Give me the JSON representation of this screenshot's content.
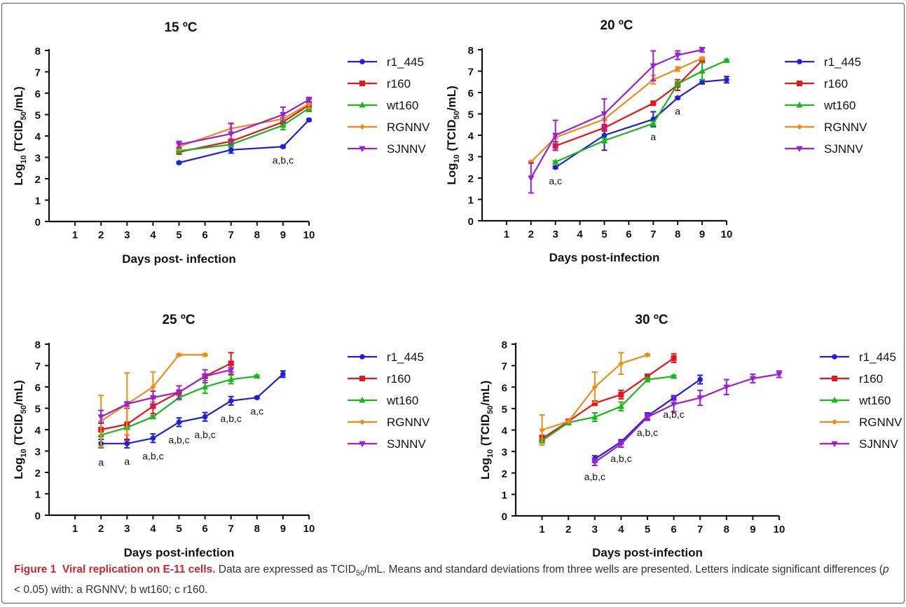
{
  "colors": {
    "r1_445": "#1f1fdc",
    "r160": "#e8131b",
    "wt160": "#18b818",
    "RGNNV": "#f08c14",
    "SJNNV": "#9b1fd6"
  },
  "legend": [
    "r1_445",
    "r160",
    "wt160",
    "RGNNV",
    "SJNNV"
  ],
  "caption": {
    "fig": "Figure 1",
    "title": "Viral replication on E-11 cells.",
    "text1": " Data are expressed as TCID",
    "sub": "50",
    "text2": "/mL. Means and standard deviations from three wells are presented. Letters indicate significant differences (",
    "p": "p",
    "text3": " < 0.05) with: a RGNNV; b wt160; c r160."
  },
  "chart_data": [
    {
      "type": "line",
      "title": "15 ºC",
      "xlabel": "Days post- infection",
      "ylabel": "Log10 (TCID50/mL)",
      "xlim": [
        0,
        10
      ],
      "ylim": [
        0,
        8
      ],
      "xticks": [
        1,
        2,
        3,
        4,
        5,
        6,
        7,
        8,
        9,
        10
      ],
      "yticks": [
        0,
        1,
        2,
        3,
        4,
        5,
        6,
        7,
        8
      ],
      "legend_position": "right",
      "series": [
        {
          "name": "r1_445",
          "x": [
            5,
            7,
            9,
            10
          ],
          "y": [
            2.75,
            3.35,
            3.5,
            4.75
          ],
          "err": [
            0.05,
            0.15,
            0.05,
            0.05
          ]
        },
        {
          "name": "r160",
          "x": [
            5,
            7,
            9,
            10
          ],
          "y": [
            3.25,
            3.75,
            4.65,
            5.45
          ],
          "err": [
            0.1,
            0.1,
            0.2,
            0.3
          ]
        },
        {
          "name": "wt160",
          "x": [
            5,
            7,
            9,
            10
          ],
          "y": [
            3.3,
            3.6,
            4.5,
            5.3
          ],
          "err": [
            0.1,
            0.1,
            0.2,
            0.15
          ]
        },
        {
          "name": "RGNNV",
          "x": [
            5,
            7,
            9,
            10
          ],
          "y": [
            3.5,
            4.35,
            4.8,
            5.5
          ],
          "err": [
            0.15,
            0.2,
            0.15,
            0.2
          ]
        },
        {
          "name": "SJNNV",
          "x": [
            5,
            7,
            9,
            10
          ],
          "y": [
            3.6,
            4.1,
            5.0,
            5.7
          ],
          "err": [
            0.15,
            0.5,
            0.35,
            0.1
          ]
        }
      ],
      "annotations": [
        {
          "text": "a,b,c",
          "x": 9,
          "y": 3.5
        }
      ]
    },
    {
      "type": "line",
      "title": "20 ºC",
      "xlabel": "Days post-infection",
      "ylabel": "Log10 (TCID50/mL)",
      "xlim": [
        0,
        10
      ],
      "ylim": [
        0,
        8
      ],
      "xticks": [
        1,
        2,
        3,
        4,
        5,
        6,
        7,
        8,
        9,
        10
      ],
      "yticks": [
        0,
        1,
        2,
        3,
        4,
        5,
        6,
        7,
        8
      ],
      "legend_position": "right",
      "series": [
        {
          "name": "r1_445",
          "x": [
            3,
            5,
            7,
            8,
            9,
            10
          ],
          "y": [
            2.5,
            4.0,
            4.75,
            5.75,
            6.5,
            6.6
          ],
          "err": [
            0.05,
            0.7,
            0.35,
            0.05,
            0.1,
            0.15
          ]
        },
        {
          "name": "r160",
          "x": [
            3,
            5,
            7,
            8,
            9
          ],
          "y": [
            3.5,
            4.35,
            5.5,
            6.35,
            7.5
          ],
          "err": [
            0.2,
            0.15,
            0.05,
            0.25,
            0.1
          ]
        },
        {
          "name": "wt160",
          "x": [
            3,
            5,
            7,
            8,
            9,
            10
          ],
          "y": [
            2.75,
            3.75,
            4.55,
            6.4,
            7.0,
            7.5
          ],
          "err": [
            0.05,
            0.1,
            0.1,
            0.1,
            0.4,
            0.05
          ]
        },
        {
          "name": "RGNNV",
          "x": [
            2,
            3,
            5,
            7,
            8,
            9
          ],
          "y": [
            2.75,
            3.9,
            4.75,
            6.6,
            7.1,
            7.6
          ],
          "err": [
            0.05,
            0.05,
            0.05,
            0.2,
            0.1,
            0.05
          ]
        },
        {
          "name": "SJNNV",
          "x": [
            2,
            3,
            5,
            7,
            8,
            9
          ],
          "y": [
            2.0,
            4.0,
            5.0,
            7.25,
            7.75,
            8.0
          ],
          "err": [
            0.7,
            0.7,
            0.7,
            0.7,
            0.2,
            0.1
          ]
        }
      ],
      "annotations": [
        {
          "text": "a,c",
          "x": 3,
          "y": 2.5
        },
        {
          "text": "a",
          "x": 7,
          "y": 4.55
        },
        {
          "text": "a",
          "x": 8,
          "y": 5.75
        }
      ]
    },
    {
      "type": "line",
      "title": "25 ºC",
      "xlabel": "Days post-infection",
      "ylabel": "Log10 (TCID50/mL)",
      "xlim": [
        0,
        10
      ],
      "ylim": [
        0,
        8
      ],
      "xticks": [
        1,
        2,
        3,
        4,
        5,
        6,
        7,
        8,
        9,
        10
      ],
      "yticks": [
        0,
        1,
        2,
        3,
        4,
        5,
        6,
        7,
        8
      ],
      "legend_position": "right",
      "series": [
        {
          "name": "r1_445",
          "x": [
            2,
            3,
            4,
            5,
            6,
            7,
            8,
            9
          ],
          "y": [
            3.35,
            3.35,
            3.6,
            4.35,
            4.6,
            5.35,
            5.5,
            6.6
          ],
          "err": [
            0.2,
            0.2,
            0.2,
            0.2,
            0.2,
            0.2,
            0.05,
            0.15
          ]
        },
        {
          "name": "r160",
          "x": [
            2,
            3,
            4,
            5,
            6,
            7
          ],
          "y": [
            4.0,
            4.25,
            5.1,
            5.75,
            6.5,
            7.1
          ],
          "err": [
            0.3,
            0.75,
            0.35,
            0.1,
            0.1,
            0.5
          ]
        },
        {
          "name": "wt160",
          "x": [
            2,
            3,
            4,
            5,
            6,
            7,
            8
          ],
          "y": [
            3.75,
            4.1,
            4.6,
            5.5,
            6.0,
            6.35,
            6.5
          ],
          "err": [
            0.6,
            0.05,
            0.05,
            0.1,
            0.3,
            0.2,
            0.05
          ]
        },
        {
          "name": "RGNNV",
          "x": [
            2,
            3,
            4,
            5,
            6
          ],
          "y": [
            4.4,
            5.2,
            6.0,
            7.5,
            7.5
          ],
          "err": [
            1.2,
            1.45,
            0.7,
            0.05,
            0.05
          ]
        },
        {
          "name": "SJNNV",
          "x": [
            2,
            3,
            4,
            5,
            6,
            7
          ],
          "y": [
            4.6,
            5.2,
            5.5,
            5.75,
            6.5,
            6.8
          ],
          "err": [
            0.3,
            0.1,
            0.3,
            0.3,
            0.3,
            0.1
          ]
        }
      ],
      "annotations": [
        {
          "text": "a",
          "x": 2,
          "y": 3.1
        },
        {
          "text": "a",
          "x": 3,
          "y": 3.15
        },
        {
          "text": "a,b,c",
          "x": 4,
          "y": 3.4
        },
        {
          "text": "a,b,c",
          "x": 5,
          "y": 4.15
        },
        {
          "text": "a,b,c",
          "x": 6,
          "y": 4.4
        },
        {
          "text": "a,b,c",
          "x": 7,
          "y": 5.15
        },
        {
          "text": "a,c",
          "x": 8,
          "y": 5.5
        }
      ]
    },
    {
      "type": "line",
      "title": "30 ºC",
      "xlabel": "Days post-infection",
      "ylabel": "Log10 (TCID50/mL)",
      "xlim": [
        0,
        10
      ],
      "ylim": [
        0,
        8
      ],
      "xticks": [
        1,
        2,
        3,
        4,
        5,
        6,
        7,
        8,
        9,
        10
      ],
      "yticks": [
        0,
        1,
        2,
        3,
        4,
        5,
        6,
        7,
        8
      ],
      "legend_position": "right",
      "series": [
        {
          "name": "r1_445",
          "x": [
            3,
            4,
            5,
            6,
            7
          ],
          "y": [
            2.65,
            3.45,
            4.65,
            5.5,
            6.35
          ],
          "err": [
            0.15,
            0.1,
            0.15,
            0.1,
            0.2
          ]
        },
        {
          "name": "r160",
          "x": [
            1,
            2,
            3,
            4,
            5,
            6
          ],
          "y": [
            3.6,
            4.4,
            5.25,
            5.65,
            6.5,
            7.35
          ],
          "err": [
            0.15,
            0.1,
            0.1,
            0.2,
            0.05,
            0.2
          ]
        },
        {
          "name": "wt160",
          "x": [
            1,
            2,
            3,
            4,
            5,
            6
          ],
          "y": [
            3.5,
            4.35,
            4.6,
            5.1,
            6.35,
            6.5
          ],
          "err": [
            0.1,
            0.1,
            0.2,
            0.2,
            0.1,
            0.05
          ]
        },
        {
          "name": "RGNNV",
          "x": [
            1,
            2,
            3,
            4,
            5
          ],
          "y": [
            4.0,
            4.4,
            6.0,
            7.1,
            7.5
          ],
          "err": [
            0.7,
            0.05,
            0.7,
            0.5,
            0.05
          ]
        },
        {
          "name": "SJNNV",
          "x": [
            3,
            4,
            5,
            6,
            7,
            8,
            9,
            10
          ],
          "y": [
            2.5,
            3.35,
            4.6,
            5.2,
            5.5,
            6.0,
            6.4,
            6.6
          ],
          "err": [
            0.15,
            0.15,
            0.15,
            0.35,
            0.35,
            0.35,
            0.2,
            0.15
          ]
        }
      ],
      "annotations": [
        {
          "text": "a,b,c",
          "x": 3,
          "y": 2.45
        },
        {
          "text": "a,b,c",
          "x": 4,
          "y": 3.3
        },
        {
          "text": "a,b,c",
          "x": 5,
          "y": 4.5
        },
        {
          "text": "a,b,c",
          "x": 6,
          "y": 5.35
        }
      ]
    }
  ]
}
